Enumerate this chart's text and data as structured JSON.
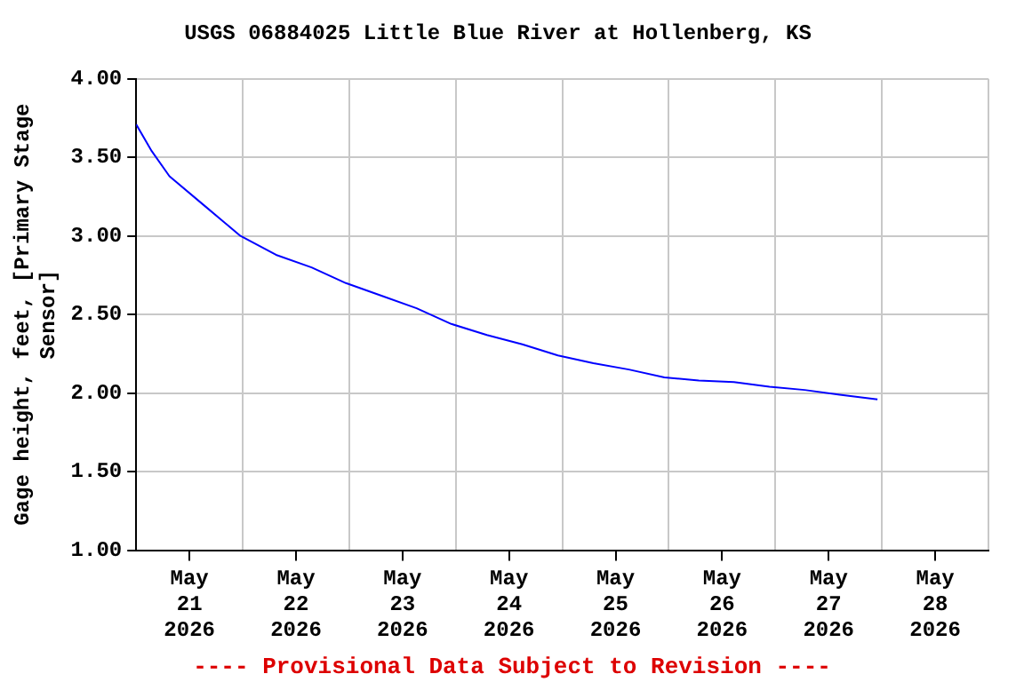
{
  "chart_data": {
    "type": "line",
    "title": "USGS 06884025 Little Blue River at Hollenberg, KS",
    "ylabel": "Gage height, feet, [Primary Stage Sensor]",
    "annotations": [
      "---- Provisional Data Subject to Revision ----"
    ],
    "x": [
      "2026-05-21T00:00",
      "2026-05-21T03:30",
      "2026-05-21T07:30",
      "2026-05-21T15:30",
      "2026-05-21T23:30",
      "2026-05-22T07:30",
      "2026-05-22T15:30",
      "2026-05-22T23:15",
      "2026-05-23T07:15",
      "2026-05-23T15:10",
      "2026-05-23T23:00",
      "2026-05-24T07:00",
      "2026-05-24T15:00",
      "2026-05-24T23:00",
      "2026-05-25T07:00",
      "2026-05-25T15:00",
      "2026-05-25T23:00",
      "2026-05-26T06:45",
      "2026-05-26T14:40",
      "2026-05-26T22:40",
      "2026-05-27T06:35",
      "2026-05-27T14:30",
      "2026-05-27T23:00"
    ],
    "series": [
      {
        "color": "#0000ff",
        "values": [
          3.71,
          3.54,
          3.38,
          3.19,
          3.0,
          2.88,
          2.8,
          2.7,
          2.62,
          2.54,
          2.44,
          2.37,
          2.31,
          2.24,
          2.19,
          2.15,
          2.1,
          2.08,
          2.07,
          2.04,
          2.02,
          1.99,
          1.96
        ]
      }
    ],
    "xlim": [
      "2026-05-21T00:00",
      "2026-05-29T00:00"
    ],
    "xticks": [
      {
        "value": "2026-05-21T12:00",
        "label": "May 21 2026"
      },
      {
        "value": "2026-05-22T12:00",
        "label": "May 22 2026"
      },
      {
        "value": "2026-05-23T12:00",
        "label": "May 23 2026"
      },
      {
        "value": "2026-05-24T12:00",
        "label": "May 24 2026"
      },
      {
        "value": "2026-05-25T12:00",
        "label": "May 25 2026"
      },
      {
        "value": "2026-05-26T12:00",
        "label": "May 26 2026"
      },
      {
        "value": "2026-05-27T12:00",
        "label": "May 27 2026"
      },
      {
        "value": "2026-05-28T12:00",
        "label": "May 28 2026"
      },
      {
        "value": "2026-05-21T00:00",
        "label": null
      },
      {
        "value": "2026-05-22T00:00",
        "label": null
      },
      {
        "value": "2026-05-23T00:00",
        "label": null
      },
      {
        "value": "2026-05-24T00:00",
        "label": null
      },
      {
        "value": "2026-05-25T00:00",
        "label": null
      },
      {
        "value": "2026-05-26T00:00",
        "label": null
      },
      {
        "value": "2026-05-27T00:00",
        "label": null
      },
      {
        "value": "2026-05-28T00:00",
        "label": null
      },
      {
        "value": "2026-05-29T00:00",
        "label": null
      }
    ],
    "ylim": [
      1,
      4
    ],
    "yticks": [
      {
        "value": 1,
        "label": "1.00"
      },
      {
        "value": 1.5,
        "label": "1.50"
      },
      {
        "value": 2,
        "label": "2.00"
      },
      {
        "value": 2.5,
        "label": "2.50"
      },
      {
        "value": 3,
        "label": "3.00"
      },
      {
        "value": 3.5,
        "label": "3.50"
      },
      {
        "value": 4,
        "label": "4.00"
      }
    ],
    "grid": true,
    "legend": false,
    "marker": "none",
    "line_style": "solid"
  }
}
